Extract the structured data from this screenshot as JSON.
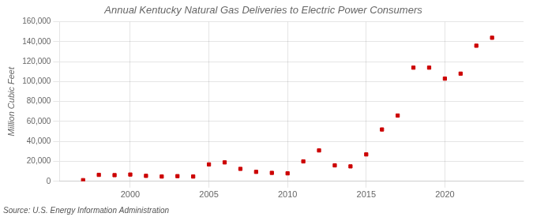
{
  "chart_data": {
    "type": "scatter",
    "title": "Annual Kentucky Natural Gas Deliveries to Electric Power Consumers",
    "ylabel": "Million Cubic Feet",
    "source": "Source: U.S. Energy Information Administration",
    "x": [
      1997,
      1998,
      1999,
      2000,
      2001,
      2002,
      2003,
      2004,
      2005,
      2006,
      2007,
      2008,
      2009,
      2010,
      2011,
      2012,
      2013,
      2014,
      2015,
      2016,
      2017,
      2018,
      2019,
      2020,
      2021,
      2022,
      2023
    ],
    "values": [
      1200,
      6500,
      6200,
      6800,
      5500,
      4800,
      5200,
      4800,
      17000,
      19000,
      12500,
      9500,
      8500,
      8000,
      20000,
      31000,
      16000,
      15000,
      27000,
      52000,
      66000,
      114000,
      114000,
      103000,
      108000,
      136000,
      144000
    ],
    "color": "#cc0000",
    "marker": "square",
    "xlim": [
      1995.5,
      2025
    ],
    "xticks": [
      2000,
      2005,
      2010,
      2015,
      2020
    ],
    "ylim": [
      0,
      160000
    ],
    "yticks": [
      0,
      {
        "value": 20000,
        "label": "20,000"
      },
      {
        "value": 40000,
        "label": "40,000"
      },
      {
        "value": 60000,
        "label": "60,000"
      },
      {
        "value": 80000,
        "label": "80,000"
      },
      {
        "value": 100000,
        "label": "100,000"
      },
      {
        "value": 120000,
        "label": "120,000"
      },
      {
        "value": 140000,
        "label": "140,000"
      },
      {
        "value": 160000,
        "label": "160,000"
      }
    ],
    "grid": true
  }
}
